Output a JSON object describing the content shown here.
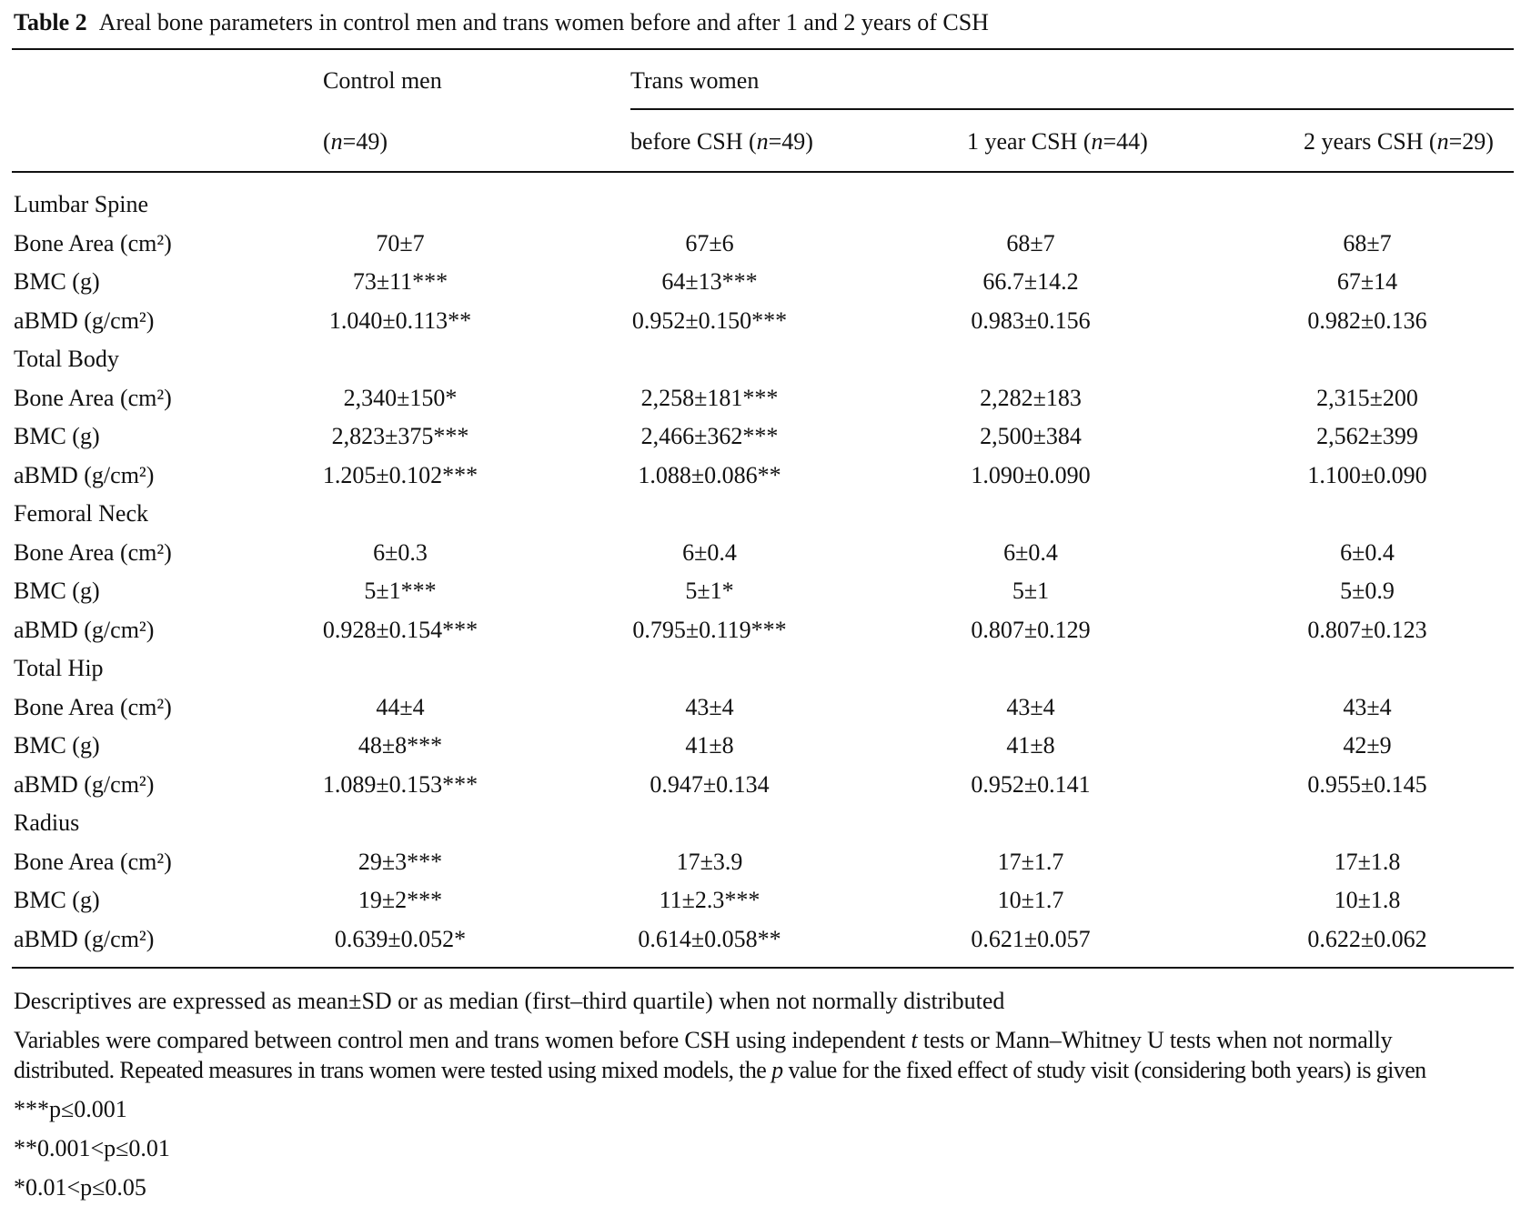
{
  "caption": {
    "label": "Table 2",
    "text": "Areal bone parameters in control men and trans women before and after 1 and 2 years of CSH"
  },
  "header": {
    "group_control": "Control men",
    "group_trans": "Trans women",
    "columns": [
      {
        "pre": "(",
        "n": "n",
        "post": "=49)"
      },
      {
        "pre": "before CSH (",
        "n": "n",
        "post": "=49)"
      },
      {
        "pre": "1 year CSH (",
        "n": "n",
        "post": "=44)"
      },
      {
        "pre": "2 years CSH (",
        "n": "n",
        "post": "=29)"
      }
    ]
  },
  "sections": [
    {
      "title": "Lumbar Spine",
      "rows": [
        {
          "label": "Bone Area (cm²)",
          "values": [
            "70±7",
            "67±6",
            "68±7",
            "68±7"
          ]
        },
        {
          "label": "BMC (g)",
          "values": [
            "73±11***",
            "64±13***",
            "66.7±14.2",
            "67±14"
          ]
        },
        {
          "label": "aBMD (g/cm²)",
          "values": [
            "1.040±0.113**",
            "0.952±0.150***",
            "0.983±0.156",
            "0.982±0.136"
          ]
        }
      ]
    },
    {
      "title": "Total Body",
      "rows": [
        {
          "label": "Bone Area (cm²)",
          "values": [
            "2,340±150*",
            "2,258±181***",
            "2,282±183",
            "2,315±200"
          ]
        },
        {
          "label": "BMC (g)",
          "values": [
            "2,823±375***",
            "2,466±362***",
            "2,500±384",
            "2,562±399"
          ]
        },
        {
          "label": "aBMD (g/cm²)",
          "values": [
            "1.205±0.102***",
            "1.088±0.086**",
            "1.090±0.090",
            "1.100±0.090"
          ]
        }
      ]
    },
    {
      "title": "Femoral Neck",
      "rows": [
        {
          "label": "Bone Area (cm²)",
          "values": [
            "6±0.3",
            "6±0.4",
            "6±0.4",
            "6±0.4"
          ]
        },
        {
          "label": "BMC (g)",
          "values": [
            "5±1***",
            "5±1*",
            "5±1",
            "5±0.9"
          ]
        },
        {
          "label": "aBMD (g/cm²)",
          "values": [
            "0.928±0.154***",
            "0.795±0.119***",
            "0.807±0.129",
            "0.807±0.123"
          ]
        }
      ]
    },
    {
      "title": "Total Hip",
      "rows": [
        {
          "label": "Bone Area (cm²)",
          "values": [
            "44±4",
            "43±4",
            "43±4",
            "43±4"
          ]
        },
        {
          "label": "BMC (g)",
          "values": [
            "48±8***",
            "41±8",
            "41±8",
            "42±9"
          ]
        },
        {
          "label": "aBMD (g/cm²)",
          "values": [
            "1.089±0.153***",
            "0.947±0.134",
            "0.952±0.141",
            "0.955±0.145"
          ]
        }
      ]
    },
    {
      "title": "Radius",
      "rows": [
        {
          "label": "Bone Area (cm²)",
          "values": [
            "29±3***",
            "17±3.9",
            "17±1.7",
            "17±1.8"
          ]
        },
        {
          "label": "BMC (g)",
          "values": [
            "19±2***",
            "11±2.3***",
            "10±1.7",
            "10±1.8"
          ]
        },
        {
          "label": "aBMD (g/cm²)",
          "values": [
            "0.639±0.052*",
            "0.614±0.058**",
            "0.621±0.057",
            "0.622±0.062"
          ]
        }
      ]
    }
  ],
  "footnotes": {
    "descriptives": "Descriptives are expressed as mean±SD or as median (first–third quartile) when not normally distributed",
    "methods_1a": "Variables were compared between control men and trans women before CSH using independent ",
    "methods_1t": "t",
    "methods_1b": " tests or Mann–Whitney U tests when not normally",
    "methods_2a": "distributed. Repeated measures in trans women were tested using mixed models, the ",
    "methods_2p": "p",
    "methods_2b": " value for the fixed effect of study visit (considering both years) is given",
    "sig3": "***p≤0.001",
    "sig2": "**0.001<p≤0.01",
    "sig1": "*0.01<p≤0.05"
  }
}
